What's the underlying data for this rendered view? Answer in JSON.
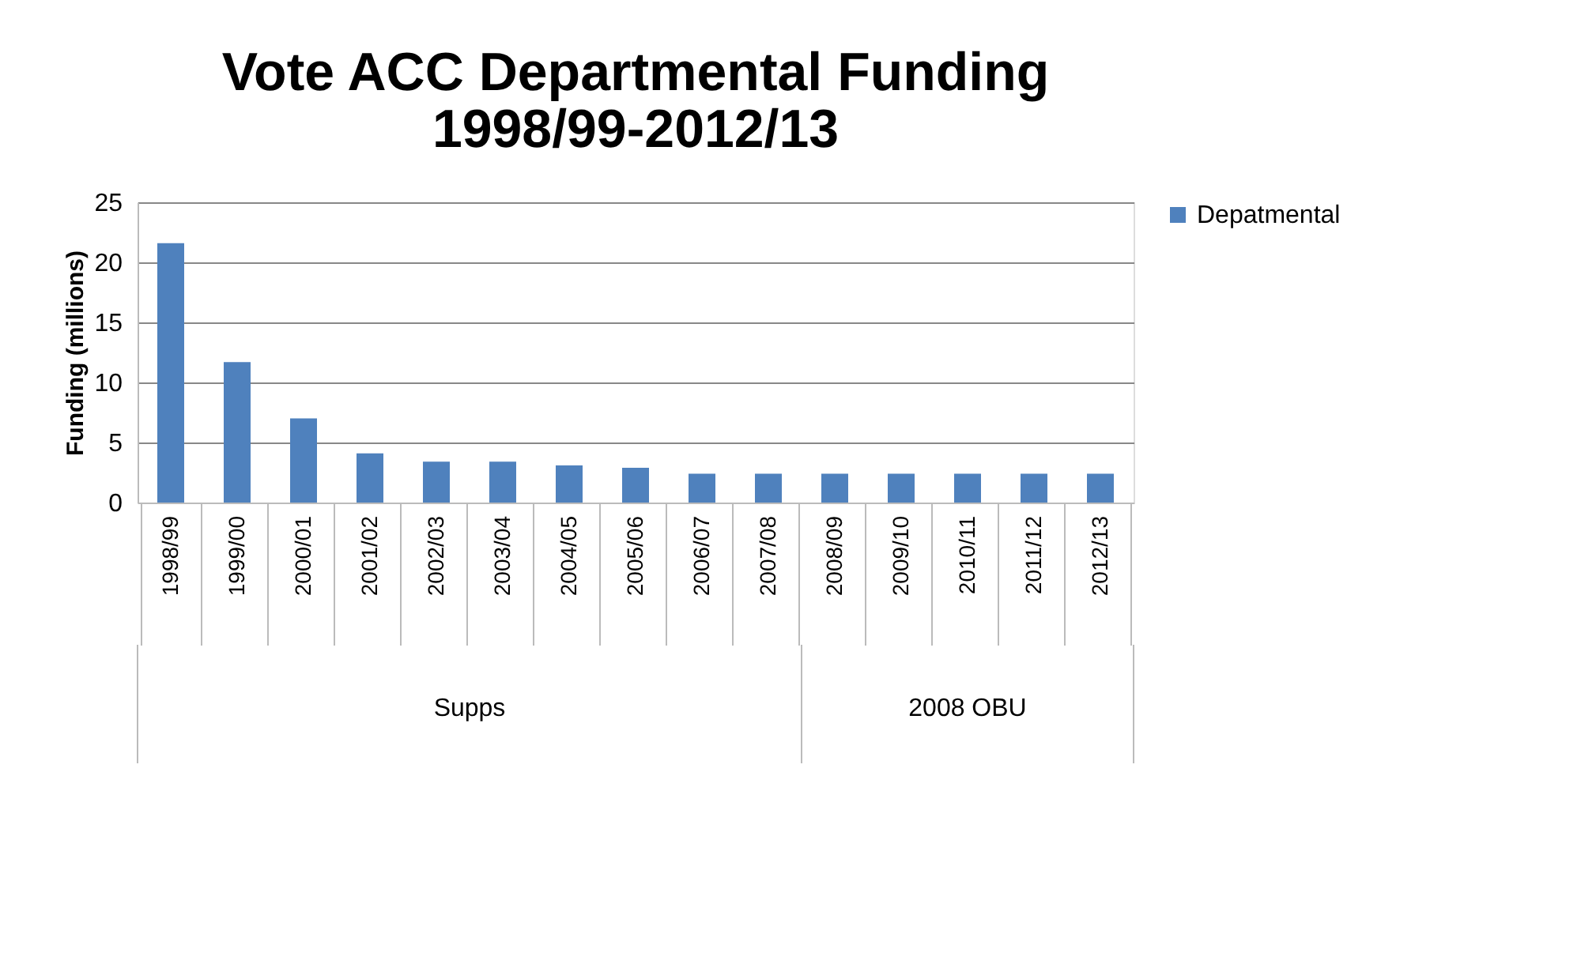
{
  "chart_data": {
    "type": "bar",
    "title": "Vote ACC Departmental Funding\n1998/99-2012/13",
    "ylabel": "Funding (millions)",
    "categories": [
      "1998/99",
      "1999/00",
      "2000/01",
      "2001/02",
      "2002/03",
      "2003/04",
      "2004/05",
      "2005/06",
      "2006/07",
      "2007/08",
      "2008/09",
      "2009/10",
      "2010/11",
      "2011/12",
      "2012/13"
    ],
    "series": [
      {
        "name": "Depatmental",
        "color": "#4f81bd",
        "values": [
          21.6,
          11.7,
          7.0,
          4.1,
          3.4,
          3.4,
          3.1,
          2.9,
          2.4,
          2.4,
          2.4,
          2.4,
          2.4,
          2.4,
          2.4
        ]
      }
    ],
    "ylim": [
      0,
      25
    ],
    "yticks": [
      0,
      5,
      10,
      15,
      20,
      25
    ],
    "grid": "y",
    "legend": "right",
    "annotations": [
      "Supps",
      "2008 OBU"
    ]
  }
}
